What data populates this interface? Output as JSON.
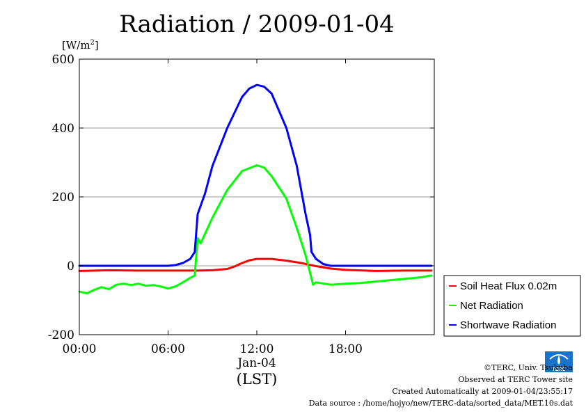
{
  "chart_data": {
    "type": "line",
    "title": "Radiation / 2009-01-04",
    "ylabel": "[W/m",
    "ylabel_sup": "2",
    "ylabel_close": "]",
    "ylim": [
      -200,
      600
    ],
    "yticks": [
      -200,
      0,
      200,
      400,
      600
    ],
    "ytick_labels": [
      "-200",
      "0",
      "200",
      "400",
      "600"
    ],
    "xlim": [
      0,
      24
    ],
    "xticks": [
      0,
      6,
      12,
      18
    ],
    "xtick_labels": [
      "00:00",
      "06:00",
      "12:00",
      "18:00"
    ],
    "date_label": "Jan-04",
    "xlabel": "(LST)",
    "grid": "horizontal",
    "legend_position": "right",
    "series": [
      {
        "name": "Soil Heat Flux 0.02m",
        "color": "#ff0000",
        "points": [
          [
            0,
            -15
          ],
          [
            2,
            -13
          ],
          [
            4,
            -14
          ],
          [
            6,
            -14
          ],
          [
            8,
            -14
          ],
          [
            9,
            -13
          ],
          [
            10,
            -9
          ],
          [
            10.5,
            -2
          ],
          [
            11,
            8
          ],
          [
            11.5,
            16
          ],
          [
            12,
            20
          ],
          [
            12.5,
            20
          ],
          [
            13,
            20
          ],
          [
            14,
            15
          ],
          [
            15,
            8
          ],
          [
            16,
            -1
          ],
          [
            17,
            -8
          ],
          [
            18,
            -12
          ],
          [
            20,
            -15
          ],
          [
            22,
            -14
          ],
          [
            23.8,
            -14
          ]
        ]
      },
      {
        "name": "Net Radiation",
        "color": "#00ff00",
        "points": [
          [
            0,
            -75
          ],
          [
            0.5,
            -80
          ],
          [
            1,
            -70
          ],
          [
            1.5,
            -62
          ],
          [
            2,
            -68
          ],
          [
            2.5,
            -55
          ],
          [
            3,
            -52
          ],
          [
            3.5,
            -56
          ],
          [
            4,
            -52
          ],
          [
            4.5,
            -58
          ],
          [
            5,
            -56
          ],
          [
            5.5,
            -60
          ],
          [
            6,
            -66
          ],
          [
            6.5,
            -60
          ],
          [
            7,
            -48
          ],
          [
            7.5,
            -35
          ],
          [
            7.8,
            -28
          ],
          [
            8,
            80
          ],
          [
            8.2,
            65
          ],
          [
            9,
            140
          ],
          [
            10,
            220
          ],
          [
            11,
            275
          ],
          [
            12,
            292
          ],
          [
            12.5,
            285
          ],
          [
            13,
            260
          ],
          [
            14,
            195
          ],
          [
            14.7,
            110
          ],
          [
            15.3,
            30
          ],
          [
            15.6,
            -20
          ],
          [
            15.8,
            -55
          ],
          [
            16,
            -48
          ],
          [
            17,
            -55
          ],
          [
            18,
            -52
          ],
          [
            19,
            -50
          ],
          [
            20,
            -46
          ],
          [
            21,
            -42
          ],
          [
            22,
            -38
          ],
          [
            23,
            -34
          ],
          [
            23.8,
            -28
          ]
        ]
      },
      {
        "name": "Shortwave Radiation",
        "color": "#0000ff",
        "points": [
          [
            0,
            0
          ],
          [
            2,
            0
          ],
          [
            4,
            0
          ],
          [
            6,
            0
          ],
          [
            6.5,
            2
          ],
          [
            7,
            8
          ],
          [
            7.5,
            20
          ],
          [
            7.8,
            40
          ],
          [
            8,
            150
          ],
          [
            8.5,
            210
          ],
          [
            9,
            290
          ],
          [
            10,
            400
          ],
          [
            11,
            490
          ],
          [
            11.5,
            515
          ],
          [
            12,
            525
          ],
          [
            12.5,
            520
          ],
          [
            13,
            500
          ],
          [
            14,
            400
          ],
          [
            14.7,
            290
          ],
          [
            15.3,
            150
          ],
          [
            15.6,
            90
          ],
          [
            15.7,
            40
          ],
          [
            16,
            20
          ],
          [
            16.5,
            5
          ],
          [
            17,
            0
          ],
          [
            18,
            0
          ],
          [
            20,
            0
          ],
          [
            22,
            0
          ],
          [
            23.8,
            0
          ]
        ]
      }
    ]
  },
  "footer": {
    "copyright": "©TERC, Univ. Tsukuba",
    "observed": "Observed at TERC Tower site",
    "created": "Created Automatically at 2009-01-04/23:55:17",
    "source": "Data source : /home/hojyo/new/TERC-data/sorted_data/MET.10s.dat",
    "logo_text": "TERC"
  }
}
